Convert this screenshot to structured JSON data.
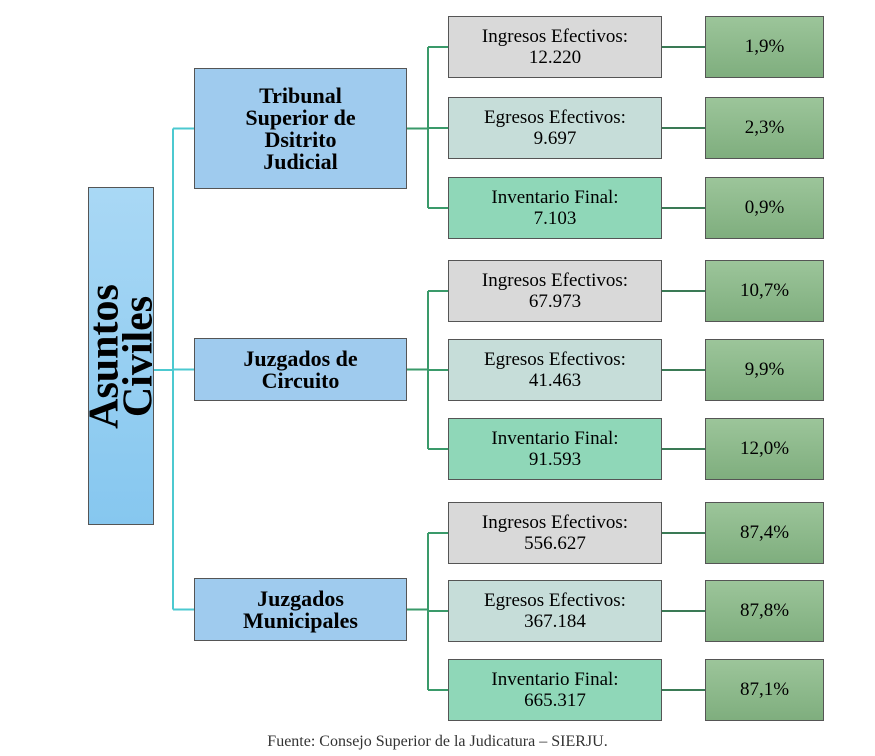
{
  "root": {
    "label": "Asuntos Civiles"
  },
  "groups": [
    {
      "label": "Tribunal Superior de Dsitrito Judicial",
      "items": [
        {
          "label": "Ingresos Efectivos:",
          "value": "12.220",
          "share": "1,9%"
        },
        {
          "label": "Egresos Efectivos:",
          "value": "9.697",
          "share": "2,3%"
        },
        {
          "label": "Inventario Final:",
          "value": "7.103",
          "share": "0,9%"
        }
      ]
    },
    {
      "label": "Juzgados de Circuito",
      "items": [
        {
          "label": "Ingresos Efectivos:",
          "value": "67.973",
          "share": "10,7%"
        },
        {
          "label": "Egresos Efectivos:",
          "value": "41.463",
          "share": "9,9%"
        },
        {
          "label": "Inventario Final:",
          "value": "91.593",
          "share": "12,0%"
        }
      ]
    },
    {
      "label": "Juzgados Municipales",
      "items": [
        {
          "label": "Ingresos Efectivos:",
          "value": "556.627",
          "share": "87,4%"
        },
        {
          "label": "Egresos Efectivos:",
          "value": "367.184",
          "share": "87,8%"
        },
        {
          "label": "Inventario Final:",
          "value": "665.317",
          "share": "87,1%"
        }
      ]
    }
  ],
  "footer": "Fuente: Consejo Superior de la Judicatura – SIERJU."
}
